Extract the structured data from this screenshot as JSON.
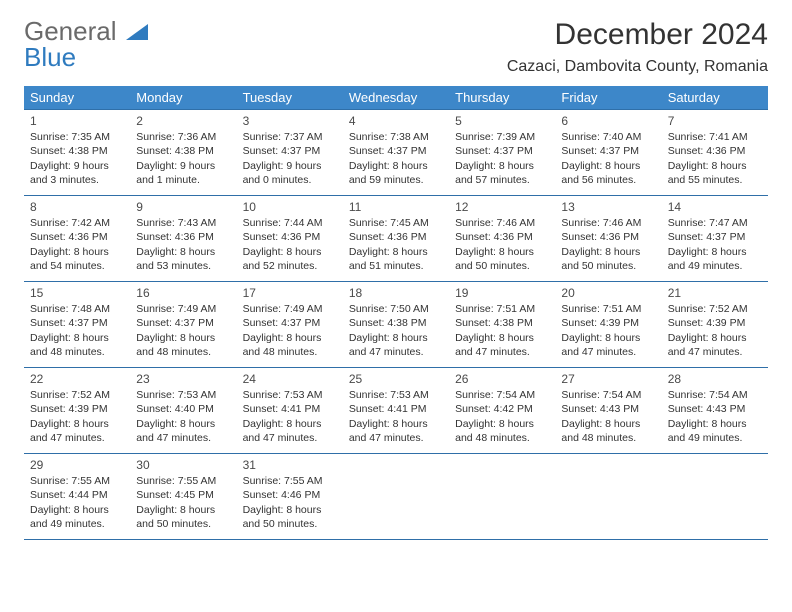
{
  "logo": {
    "line1": "General",
    "line2": "Blue"
  },
  "title": "December 2024",
  "location": "Cazaci, Dambovita County, Romania",
  "colors": {
    "header_bg": "#3d87c9",
    "header_fg": "#ffffff",
    "rule": "#2f6fa8",
    "logo_gray": "#6a6a6a",
    "logo_blue": "#2f7bbf",
    "text": "#333333",
    "bg": "#ffffff"
  },
  "days_of_week": [
    "Sunday",
    "Monday",
    "Tuesday",
    "Wednesday",
    "Thursday",
    "Friday",
    "Saturday"
  ],
  "weeks": [
    [
      {
        "n": "1",
        "sr": "7:35 AM",
        "ss": "4:38 PM",
        "dl": "9 hours and 3 minutes."
      },
      {
        "n": "2",
        "sr": "7:36 AM",
        "ss": "4:38 PM",
        "dl": "9 hours and 1 minute."
      },
      {
        "n": "3",
        "sr": "7:37 AM",
        "ss": "4:37 PM",
        "dl": "9 hours and 0 minutes."
      },
      {
        "n": "4",
        "sr": "7:38 AM",
        "ss": "4:37 PM",
        "dl": "8 hours and 59 minutes."
      },
      {
        "n": "5",
        "sr": "7:39 AM",
        "ss": "4:37 PM",
        "dl": "8 hours and 57 minutes."
      },
      {
        "n": "6",
        "sr": "7:40 AM",
        "ss": "4:37 PM",
        "dl": "8 hours and 56 minutes."
      },
      {
        "n": "7",
        "sr": "7:41 AM",
        "ss": "4:36 PM",
        "dl": "8 hours and 55 minutes."
      }
    ],
    [
      {
        "n": "8",
        "sr": "7:42 AM",
        "ss": "4:36 PM",
        "dl": "8 hours and 54 minutes."
      },
      {
        "n": "9",
        "sr": "7:43 AM",
        "ss": "4:36 PM",
        "dl": "8 hours and 53 minutes."
      },
      {
        "n": "10",
        "sr": "7:44 AM",
        "ss": "4:36 PM",
        "dl": "8 hours and 52 minutes."
      },
      {
        "n": "11",
        "sr": "7:45 AM",
        "ss": "4:36 PM",
        "dl": "8 hours and 51 minutes."
      },
      {
        "n": "12",
        "sr": "7:46 AM",
        "ss": "4:36 PM",
        "dl": "8 hours and 50 minutes."
      },
      {
        "n": "13",
        "sr": "7:46 AM",
        "ss": "4:36 PM",
        "dl": "8 hours and 50 minutes."
      },
      {
        "n": "14",
        "sr": "7:47 AM",
        "ss": "4:37 PM",
        "dl": "8 hours and 49 minutes."
      }
    ],
    [
      {
        "n": "15",
        "sr": "7:48 AM",
        "ss": "4:37 PM",
        "dl": "8 hours and 48 minutes."
      },
      {
        "n": "16",
        "sr": "7:49 AM",
        "ss": "4:37 PM",
        "dl": "8 hours and 48 minutes."
      },
      {
        "n": "17",
        "sr": "7:49 AM",
        "ss": "4:37 PM",
        "dl": "8 hours and 48 minutes."
      },
      {
        "n": "18",
        "sr": "7:50 AM",
        "ss": "4:38 PM",
        "dl": "8 hours and 47 minutes."
      },
      {
        "n": "19",
        "sr": "7:51 AM",
        "ss": "4:38 PM",
        "dl": "8 hours and 47 minutes."
      },
      {
        "n": "20",
        "sr": "7:51 AM",
        "ss": "4:39 PM",
        "dl": "8 hours and 47 minutes."
      },
      {
        "n": "21",
        "sr": "7:52 AM",
        "ss": "4:39 PM",
        "dl": "8 hours and 47 minutes."
      }
    ],
    [
      {
        "n": "22",
        "sr": "7:52 AM",
        "ss": "4:39 PM",
        "dl": "8 hours and 47 minutes."
      },
      {
        "n": "23",
        "sr": "7:53 AM",
        "ss": "4:40 PM",
        "dl": "8 hours and 47 minutes."
      },
      {
        "n": "24",
        "sr": "7:53 AM",
        "ss": "4:41 PM",
        "dl": "8 hours and 47 minutes."
      },
      {
        "n": "25",
        "sr": "7:53 AM",
        "ss": "4:41 PM",
        "dl": "8 hours and 47 minutes."
      },
      {
        "n": "26",
        "sr": "7:54 AM",
        "ss": "4:42 PM",
        "dl": "8 hours and 48 minutes."
      },
      {
        "n": "27",
        "sr": "7:54 AM",
        "ss": "4:43 PM",
        "dl": "8 hours and 48 minutes."
      },
      {
        "n": "28",
        "sr": "7:54 AM",
        "ss": "4:43 PM",
        "dl": "8 hours and 49 minutes."
      }
    ],
    [
      {
        "n": "29",
        "sr": "7:55 AM",
        "ss": "4:44 PM",
        "dl": "8 hours and 49 minutes."
      },
      {
        "n": "30",
        "sr": "7:55 AM",
        "ss": "4:45 PM",
        "dl": "8 hours and 50 minutes."
      },
      {
        "n": "31",
        "sr": "7:55 AM",
        "ss": "4:46 PM",
        "dl": "8 hours and 50 minutes."
      },
      null,
      null,
      null,
      null
    ]
  ],
  "labels": {
    "sunrise": "Sunrise: ",
    "sunset": "Sunset: ",
    "daylight": "Daylight: "
  }
}
